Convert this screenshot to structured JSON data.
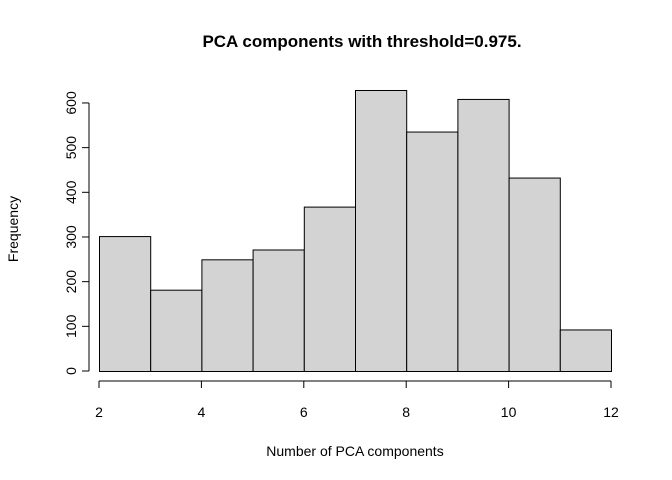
{
  "chart_data": {
    "type": "bar",
    "title": "PCA components with threshold=0.975.",
    "xlabel": "Number of PCA components",
    "ylabel": "Frequency",
    "bins": [
      {
        "x0": 2,
        "x1": 3,
        "count": 302
      },
      {
        "x0": 3,
        "x1": 4,
        "count": 182
      },
      {
        "x0": 4,
        "x1": 5,
        "count": 250
      },
      {
        "x0": 5,
        "x1": 6,
        "count": 272
      },
      {
        "x0": 6,
        "x1": 7,
        "count": 368
      },
      {
        "x0": 7,
        "x1": 8,
        "count": 629
      },
      {
        "x0": 8,
        "x1": 9,
        "count": 536
      },
      {
        "x0": 9,
        "x1": 10,
        "count": 609
      },
      {
        "x0": 10,
        "x1": 11,
        "count": 433
      },
      {
        "x0": 11,
        "x1": 12,
        "count": 93
      }
    ],
    "xlim": [
      2,
      12
    ],
    "ylim": [
      0,
      629
    ],
    "x_ticks": [
      2,
      4,
      6,
      8,
      10,
      12
    ],
    "y_ticks": [
      0,
      100,
      200,
      300,
      400,
      500,
      600
    ],
    "bar_color": "#d3d3d3",
    "grid": false
  }
}
